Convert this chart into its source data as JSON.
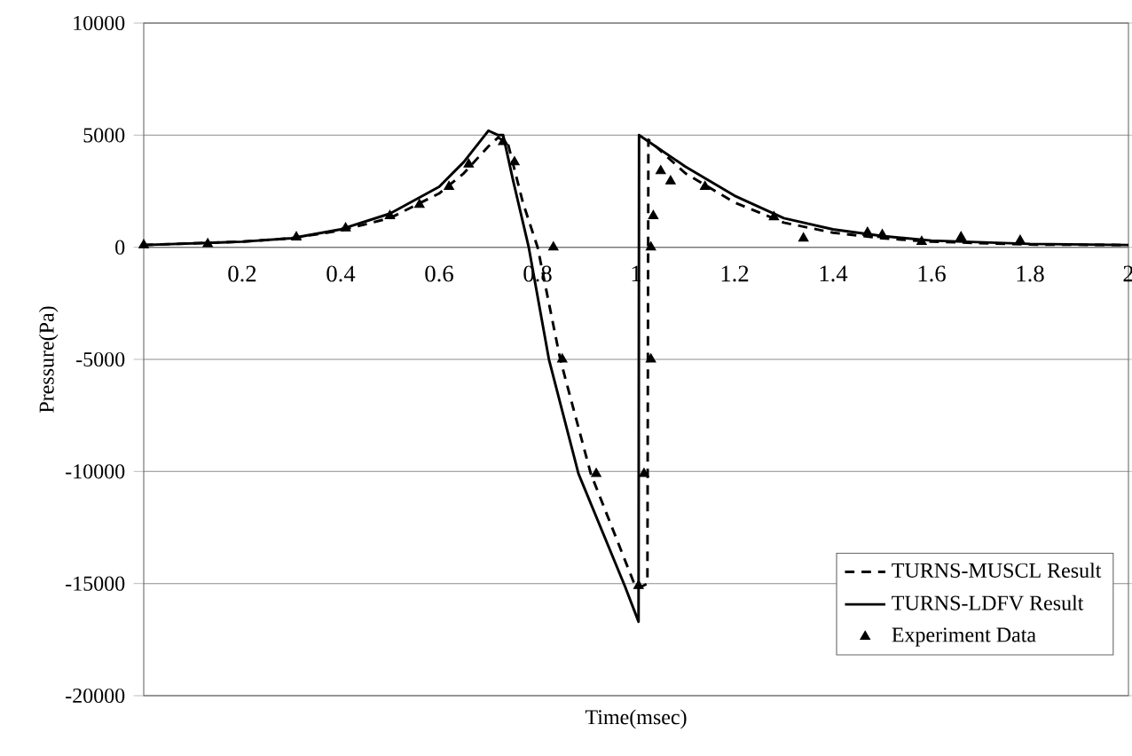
{
  "chart_data": {
    "type": "line",
    "xlabel": "Time(msec)",
    "ylabel": "Pressure(Pa)",
    "xlim": [
      0,
      2
    ],
    "ylim": [
      -20000,
      10000
    ],
    "xticks": [
      {
        "value": 0,
        "label": null
      },
      0.2,
      0.4,
      0.6,
      0.8,
      1,
      1.2,
      1.4,
      1.6,
      1.8,
      2
    ],
    "yticks": [
      -20000,
      -15000,
      -10000,
      -5000,
      0,
      5000,
      10000
    ],
    "grid": "y",
    "legend": "bottom right",
    "series": [
      {
        "name": "TURNS-MUSCL Result",
        "color": "#000000",
        "line_style": "dashed",
        "x": [
          0,
          0.2,
          0.3,
          0.4,
          0.5,
          0.6,
          0.65,
          0.7,
          0.72,
          0.74,
          0.77,
          0.8,
          0.846,
          0.908,
          0.998,
          1.005,
          1.023,
          1.025,
          1.1,
          1.2,
          1.3,
          1.4,
          1.5,
          1.6,
          1.8,
          2.0
        ],
        "values": [
          100,
          250,
          400,
          750,
          1300,
          2400,
          3300,
          4500,
          4900,
          4600,
          2000,
          0,
          -5000,
          -10100,
          -15100,
          -15200,
          -15000,
          4800,
          3300,
          2000,
          1100,
          650,
          400,
          250,
          120,
          100
        ]
      },
      {
        "name": "TURNS-LDFV Result",
        "color": "#000000",
        "line_style": "solid",
        "x": [
          0,
          0.2,
          0.3,
          0.4,
          0.5,
          0.6,
          0.65,
          0.7,
          0.72,
          0.73,
          0.75,
          0.782,
          0.823,
          0.883,
          0.977,
          1.005,
          1.006,
          1.1,
          1.2,
          1.3,
          1.4,
          1.5,
          1.6,
          1.8,
          2.0
        ],
        "values": [
          100,
          250,
          400,
          800,
          1500,
          2700,
          3800,
          5200,
          5000,
          5000,
          3000,
          0,
          -5000,
          -10100,
          -15100,
          -16700,
          5000,
          3600,
          2300,
          1300,
          800,
          500,
          300,
          150,
          100
        ]
      },
      {
        "name": "Experiment Data",
        "type": "scatter",
        "color": "#000000",
        "marker": "triangle",
        "x": [
          0,
          0.13,
          0.31,
          0.41,
          0.5,
          0.56,
          0.62,
          0.66,
          0.73,
          0.753,
          0.832,
          0.85,
          0.919,
          1.005,
          1.016,
          1.03,
          1.03,
          1.035,
          1.05,
          1.07,
          1.14,
          1.28,
          1.34,
          1.47,
          1.5,
          1.58,
          1.66,
          1.78
        ],
        "values": [
          100,
          150,
          450,
          850,
          1400,
          1900,
          2700,
          3700,
          4700,
          3800,
          0,
          -5000,
          -10100,
          -15100,
          -10100,
          -5000,
          0,
          1400,
          3400,
          2950,
          2700,
          1350,
          400,
          650,
          550,
          250,
          450,
          300
        ]
      }
    ]
  }
}
